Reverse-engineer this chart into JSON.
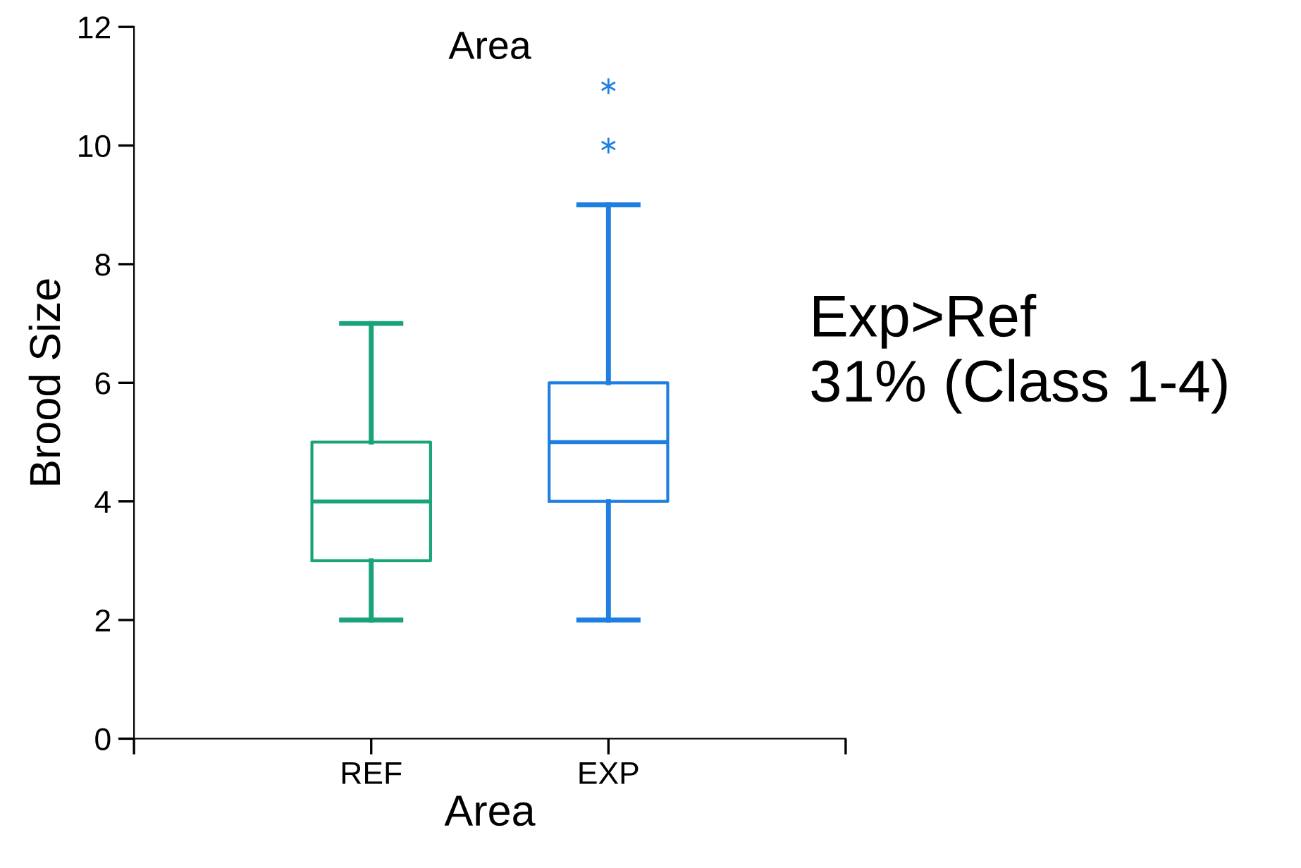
{
  "chart_data": {
    "type": "box",
    "title": "Area",
    "xlabel": "Area",
    "ylabel": "Brood Size",
    "categories": [
      "REF",
      "EXP"
    ],
    "colors": [
      "#1aa37a",
      "#1f7fe0"
    ],
    "boxes": [
      {
        "low": 2,
        "q1": 3,
        "median": 4,
        "q3": 5,
        "high": 7
      },
      {
        "low": 2,
        "q1": 4,
        "median": 5,
        "q3": 6,
        "high": 9,
        "outliers": [
          10,
          11
        ]
      }
    ],
    "marker": "star",
    "ylim": [
      0,
      12
    ],
    "yticks": [
      0,
      2,
      4,
      6,
      8,
      10,
      12
    ],
    "grid": false,
    "legend": false,
    "annotations": [
      "Exp>Ref",
      "31% (Class 1-4)"
    ]
  }
}
